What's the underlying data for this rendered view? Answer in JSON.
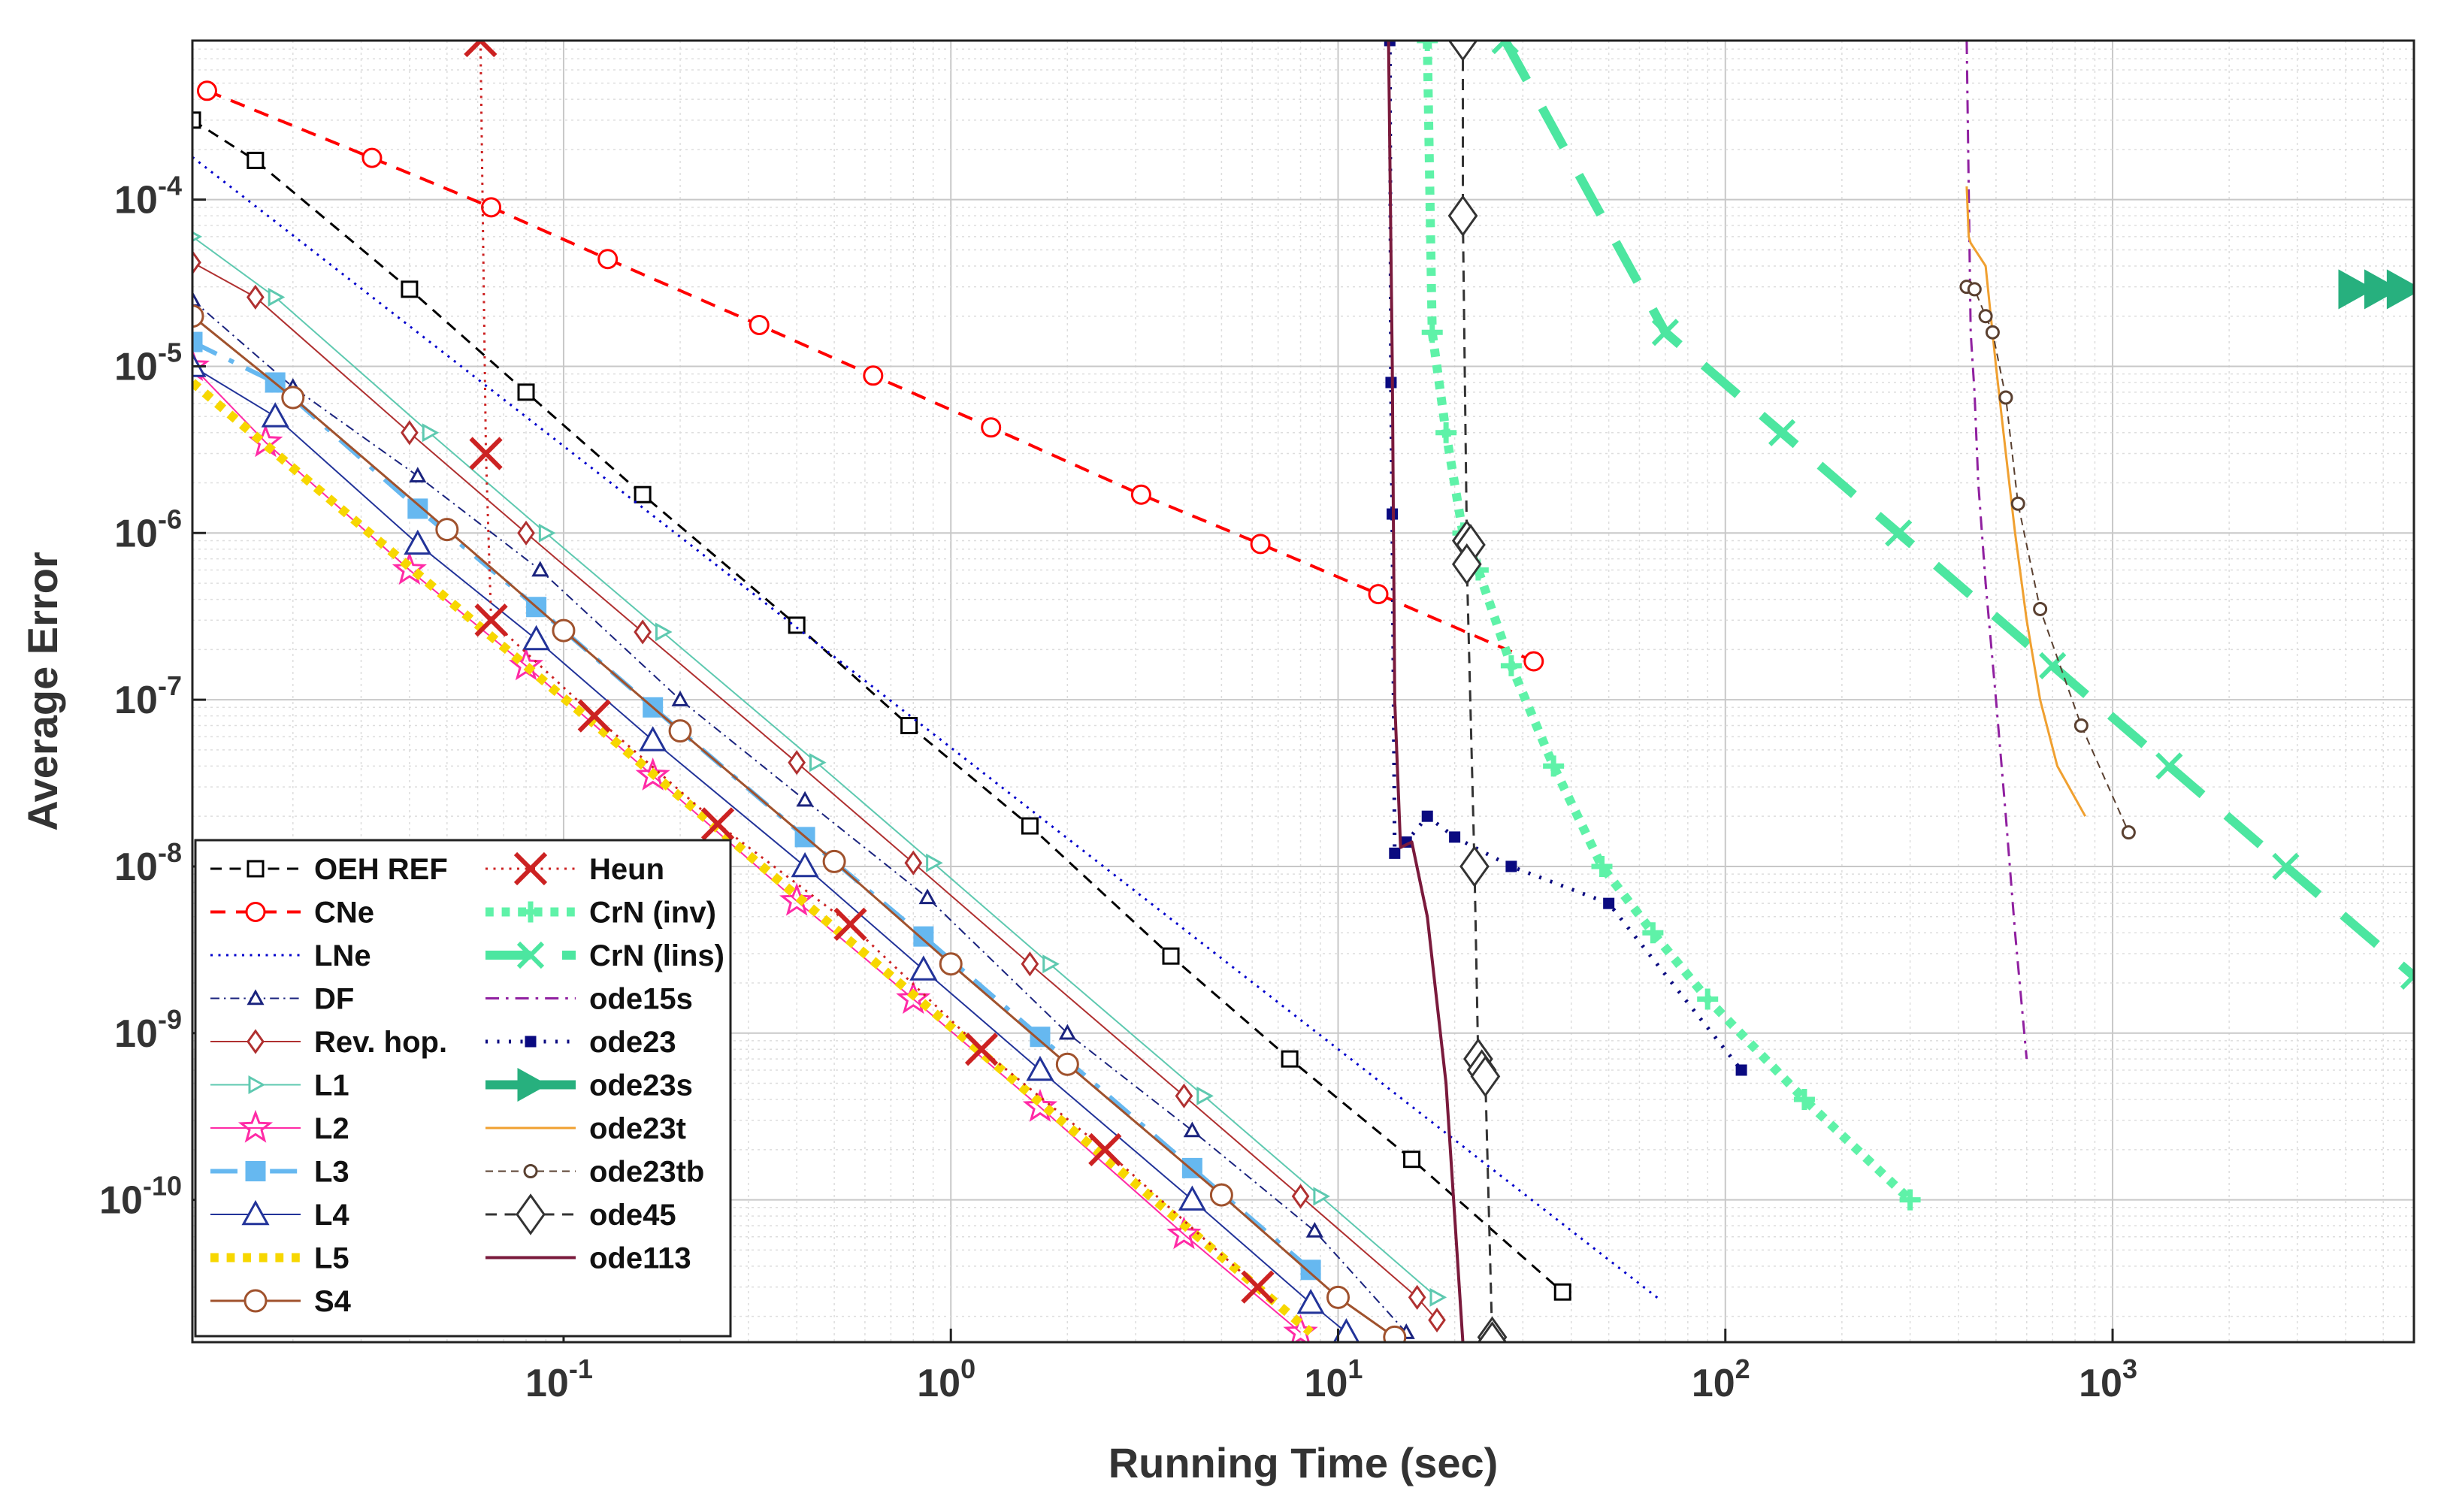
{
  "chart_data": {
    "type": "line",
    "xscale": "log",
    "yscale": "log",
    "xlabel": "Running Time (sec)",
    "ylabel": "Average Error",
    "xlim": [
      0.011,
      6000
    ],
    "ylim": [
      1.4e-11,
      0.0009
    ],
    "grid": true,
    "minor_grid": true,
    "legend_location": "lower-left",
    "legend_columns": 2,
    "xticks": [
      {
        "value": 0.1,
        "base": "10",
        "exp": "-1"
      },
      {
        "value": 1,
        "base": "10",
        "exp": "0"
      },
      {
        "value": 10,
        "base": "10",
        "exp": "1"
      },
      {
        "value": 100,
        "base": "10",
        "exp": "2"
      },
      {
        "value": 1000,
        "base": "10",
        "exp": "3"
      }
    ],
    "yticks": [
      {
        "value": 1e-10,
        "base": "10",
        "exp": "-10"
      },
      {
        "value": 1e-09,
        "base": "10",
        "exp": "-9"
      },
      {
        "value": 1e-08,
        "base": "10",
        "exp": "-8"
      },
      {
        "value": 1e-07,
        "base": "10",
        "exp": "-7"
      },
      {
        "value": 1e-06,
        "base": "10",
        "exp": "-6"
      },
      {
        "value": 1e-05,
        "base": "10",
        "exp": "-5"
      },
      {
        "value": 0.0001,
        "base": "10",
        "exp": "-4"
      }
    ],
    "series": [
      {
        "name": "OEH REF",
        "color": "#000000",
        "dash": "dashed",
        "width": 3,
        "marker": "square",
        "marker_fill": false,
        "marker_size": 10,
        "x": [
          0.011,
          0.016,
          0.04,
          0.08,
          0.16,
          0.4,
          0.78,
          1.6,
          3.7,
          7.5,
          15.5,
          38
        ],
        "y": [
          0.0003,
          0.000172,
          2.9e-05,
          7e-06,
          1.7e-06,
          2.8e-07,
          7e-08,
          1.75e-08,
          2.9e-09,
          7e-10,
          1.75e-10,
          2.8e-11
        ]
      },
      {
        "name": "CNe",
        "color": "#ff0000",
        "dash": "dashed",
        "width": 4,
        "marker": "circle",
        "marker_fill": false,
        "marker_size": 12,
        "x": [
          0.012,
          0.032,
          0.065,
          0.13,
          0.32,
          0.63,
          1.27,
          3.1,
          6.3,
          12.7,
          32
        ],
        "y": [
          0.00045,
          0.000178,
          9e-05,
          4.4e-05,
          1.77e-05,
          8.8e-06,
          4.3e-06,
          1.7e-06,
          8.6e-07,
          4.3e-07,
          1.7e-07
        ]
      },
      {
        "name": "LNe",
        "color": "#0000cc",
        "dash": "dotted",
        "width": 3,
        "marker": "none",
        "x": [
          0.011,
          68
        ],
        "y": [
          0.00018,
          2.5e-11
        ]
      },
      {
        "name": "DF",
        "color": "#1a237e",
        "dash": "dashdot",
        "width": 2,
        "marker": "triangle",
        "marker_fill": false,
        "marker_size": 9,
        "x": [
          0.011,
          0.02,
          0.042,
          0.087,
          0.2,
          0.42,
          0.87,
          2.0,
          4.2,
          8.7,
          15
        ],
        "y": [
          2.5e-05,
          7.5e-06,
          2.2e-06,
          6e-07,
          1e-07,
          2.5e-08,
          6.5e-09,
          1e-09,
          2.6e-10,
          6.5e-11,
          1.6e-11
        ]
      },
      {
        "name": "Rev. hop.",
        "color": "#b03030",
        "dash": "solid",
        "width": 2,
        "marker": "diamond",
        "marker_fill": false,
        "marker_size": 10,
        "x": [
          0.011,
          0.016,
          0.04,
          0.08,
          0.16,
          0.4,
          0.8,
          1.6,
          4.0,
          8.0,
          16,
          18
        ],
        "y": [
          4.2e-05,
          2.6e-05,
          4e-06,
          1e-06,
          2.55e-07,
          4.2e-08,
          1.05e-08,
          2.6e-09,
          4.2e-10,
          1.05e-10,
          2.6e-11,
          1.9e-11
        ]
      },
      {
        "name": "L1",
        "color": "#5ec9b0",
        "dash": "solid",
        "width": 2,
        "marker": "tri-right",
        "marker_fill": false,
        "marker_size": 10,
        "x": [
          0.011,
          0.018,
          0.045,
          0.09,
          0.18,
          0.45,
          0.9,
          1.8,
          4.5,
          9,
          18
        ],
        "y": [
          6e-05,
          2.6e-05,
          4e-06,
          1e-06,
          2.55e-07,
          4.2e-08,
          1.05e-08,
          2.6e-09,
          4.2e-10,
          1.05e-10,
          2.6e-11
        ]
      },
      {
        "name": "L2",
        "color": "#ff2aa6",
        "dash": "solid",
        "width": 2,
        "marker": "star",
        "marker_fill": false,
        "marker_size": 20,
        "x": [
          0.011,
          0.017,
          0.04,
          0.08,
          0.17,
          0.4,
          0.8,
          1.7,
          4.0,
          8.0
        ],
        "y": [
          1e-05,
          3.5e-06,
          6e-07,
          1.6e-07,
          3.5e-08,
          6.2e-09,
          1.6e-09,
          3.6e-10,
          6.2e-11,
          1.6e-11
        ]
      },
      {
        "name": "L3",
        "color": "#66b8f0",
        "dash": "dashdot",
        "width": 6,
        "marker": "square",
        "marker_fill": true,
        "marker_size": 12,
        "x": [
          0.011,
          0.018,
          0.042,
          0.085,
          0.17,
          0.42,
          0.85,
          1.7,
          4.2,
          8.5
        ],
        "y": [
          1.4e-05,
          8e-06,
          1.4e-06,
          3.6e-07,
          9e-08,
          1.5e-08,
          3.8e-09,
          9.5e-10,
          1.55e-10,
          3.8e-11
        ]
      },
      {
        "name": "L4",
        "color": "#223399",
        "dash": "solid",
        "width": 2,
        "marker": "triangle",
        "marker_fill": false,
        "marker_size": 16,
        "x": [
          0.011,
          0.018,
          0.042,
          0.085,
          0.17,
          0.42,
          0.85,
          1.7,
          4.2,
          8.5,
          10.5
        ],
        "y": [
          1e-05,
          5e-06,
          8.6e-07,
          2.3e-07,
          5.7e-08,
          1e-08,
          2.4e-09,
          6e-10,
          1e-10,
          2.4e-11,
          1.6e-11
        ]
      },
      {
        "name": "L5",
        "color": "#f7d700",
        "dash": "dotted",
        "width": 12,
        "marker": "none",
        "x": [
          0.011,
          8.5
        ],
        "y": [
          8e-06,
          1.6e-11
        ]
      },
      {
        "name": "S4",
        "color": "#a0522d",
        "dash": "solid",
        "width": 3,
        "marker": "circle",
        "marker_fill": false,
        "marker_size": 14,
        "x": [
          0.011,
          0.02,
          0.05,
          0.1,
          0.2,
          0.5,
          1.0,
          2.0,
          5.0,
          10,
          14
        ],
        "y": [
          2e-05,
          6.5e-06,
          1.05e-06,
          2.6e-07,
          6.5e-08,
          1.07e-08,
          2.6e-09,
          6.5e-10,
          1.07e-10,
          2.6e-11,
          1.5e-11
        ]
      },
      {
        "name": "Heun",
        "color": "#cc2222",
        "dash": "dotted",
        "width": 3,
        "marker": "x",
        "marker_fill": false,
        "marker_size": 20,
        "x": [
          0.061,
          0.063,
          0.065,
          0.12,
          0.25,
          0.55,
          1.2,
          2.5,
          6.2
        ],
        "y": [
          0.0009,
          3e-06,
          3e-07,
          8e-08,
          1.8e-08,
          4.5e-09,
          8e-10,
          2e-10,
          3e-11
        ]
      },
      {
        "name": "CrN (inv)",
        "color": "#5ff2a8",
        "dash": "dotted",
        "width": 12,
        "marker": "plus",
        "marker_fill": false,
        "marker_size": 14,
        "x": [
          17,
          17.5,
          19,
          21,
          23,
          28,
          36,
          48,
          65,
          90,
          160,
          300
        ],
        "y": [
          0.0009,
          1.6e-05,
          4e-06,
          1e-06,
          6e-07,
          1.6e-07,
          4e-08,
          1e-08,
          4e-09,
          1.6e-09,
          4e-10,
          1e-10
        ]
      },
      {
        "name": "CrN (lins)",
        "color": "#4ce6a0",
        "dash": "dashed",
        "width": 12,
        "marker": "x",
        "marker_fill": false,
        "marker_size": 16,
        "x": [
          27,
          70,
          140,
          280,
          700,
          1400,
          2800,
          6000
        ],
        "y": [
          0.0009,
          1.6e-05,
          4e-06,
          1e-06,
          1.6e-07,
          4e-08,
          1e-08,
          2.2e-09
        ]
      },
      {
        "name": "ode15s",
        "color": "#9020a0",
        "dash": "dashdot",
        "width": 3,
        "marker": "none",
        "x": [
          420,
          430,
          440,
          450,
          470,
          500,
          530,
          560,
          600
        ],
        "y": [
          0.0009,
          1.6e-05,
          7e-06,
          2e-06,
          5e-07,
          1e-07,
          2e-08,
          4e-09,
          7e-10
        ]
      },
      {
        "name": "ode23",
        "color": "#0a0a80",
        "dash": "dotted",
        "width": 5,
        "marker": "square",
        "marker_fill": true,
        "marker_size": 6,
        "x": [
          13.6,
          13.7,
          13.8,
          14,
          15,
          17,
          20,
          28,
          50,
          110
        ],
        "y": [
          0.0009,
          8e-06,
          1.3e-06,
          1.2e-08,
          1.4e-08,
          2e-08,
          1.5e-08,
          1e-08,
          6e-09,
          6e-10
        ]
      },
      {
        "name": "ode23s",
        "color": "#27b07e",
        "dash": "solid",
        "width": 12,
        "marker": "tri-right",
        "marker_fill": true,
        "marker_size": 24,
        "x": [
          4200,
          4900,
          5600
        ],
        "y": [
          2.9e-05,
          2.9e-05,
          2.9e-05
        ]
      },
      {
        "name": "ode23t",
        "color": "#f0a030",
        "dash": "solid",
        "width": 3,
        "marker": "none",
        "x": [
          420,
          425,
          430,
          470,
          500,
          530,
          560,
          600,
          650,
          720,
          850
        ],
        "y": [
          0.00012,
          6e-05,
          5.5e-05,
          4e-05,
          1e-05,
          3e-06,
          1e-06,
          3e-07,
          1e-07,
          4e-08,
          2e-08
        ]
      },
      {
        "name": "ode23tb",
        "color": "#5a4030",
        "dash": "dashed",
        "width": 2,
        "marker": "circle",
        "marker_fill": false,
        "marker_size": 8,
        "x": [
          420,
          440,
          470,
          490,
          530,
          570,
          650,
          830,
          1100
        ],
        "y": [
          3e-05,
          2.9e-05,
          2e-05,
          1.6e-05,
          6.5e-06,
          1.5e-06,
          3.5e-07,
          7e-08,
          1.6e-08
        ]
      },
      {
        "name": "ode45",
        "color": "#333333",
        "dash": "dashed",
        "width": 3,
        "marker": "diamond",
        "marker_fill": false,
        "marker_size": 18,
        "x": [
          21,
          21,
          21.5,
          22,
          21.5,
          22.5,
          23,
          23.5,
          24,
          25,
          25
        ],
        "y": [
          0.0009,
          8e-05,
          9e-07,
          8.5e-07,
          6.5e-07,
          1e-08,
          7e-10,
          6e-10,
          5.5e-10,
          1.5e-11,
          1.4e-11
        ]
      },
      {
        "name": "ode113",
        "color": "#7a1a3c",
        "dash": "solid",
        "width": 4,
        "marker": "none",
        "x": [
          13.5,
          13.8,
          14,
          14.5,
          15.5,
          17,
          19,
          21
        ],
        "y": [
          0.0009,
          1e-05,
          1e-07,
          1.3e-08,
          1.4e-08,
          5e-09,
          5e-10,
          1.4e-11
        ]
      }
    ]
  }
}
